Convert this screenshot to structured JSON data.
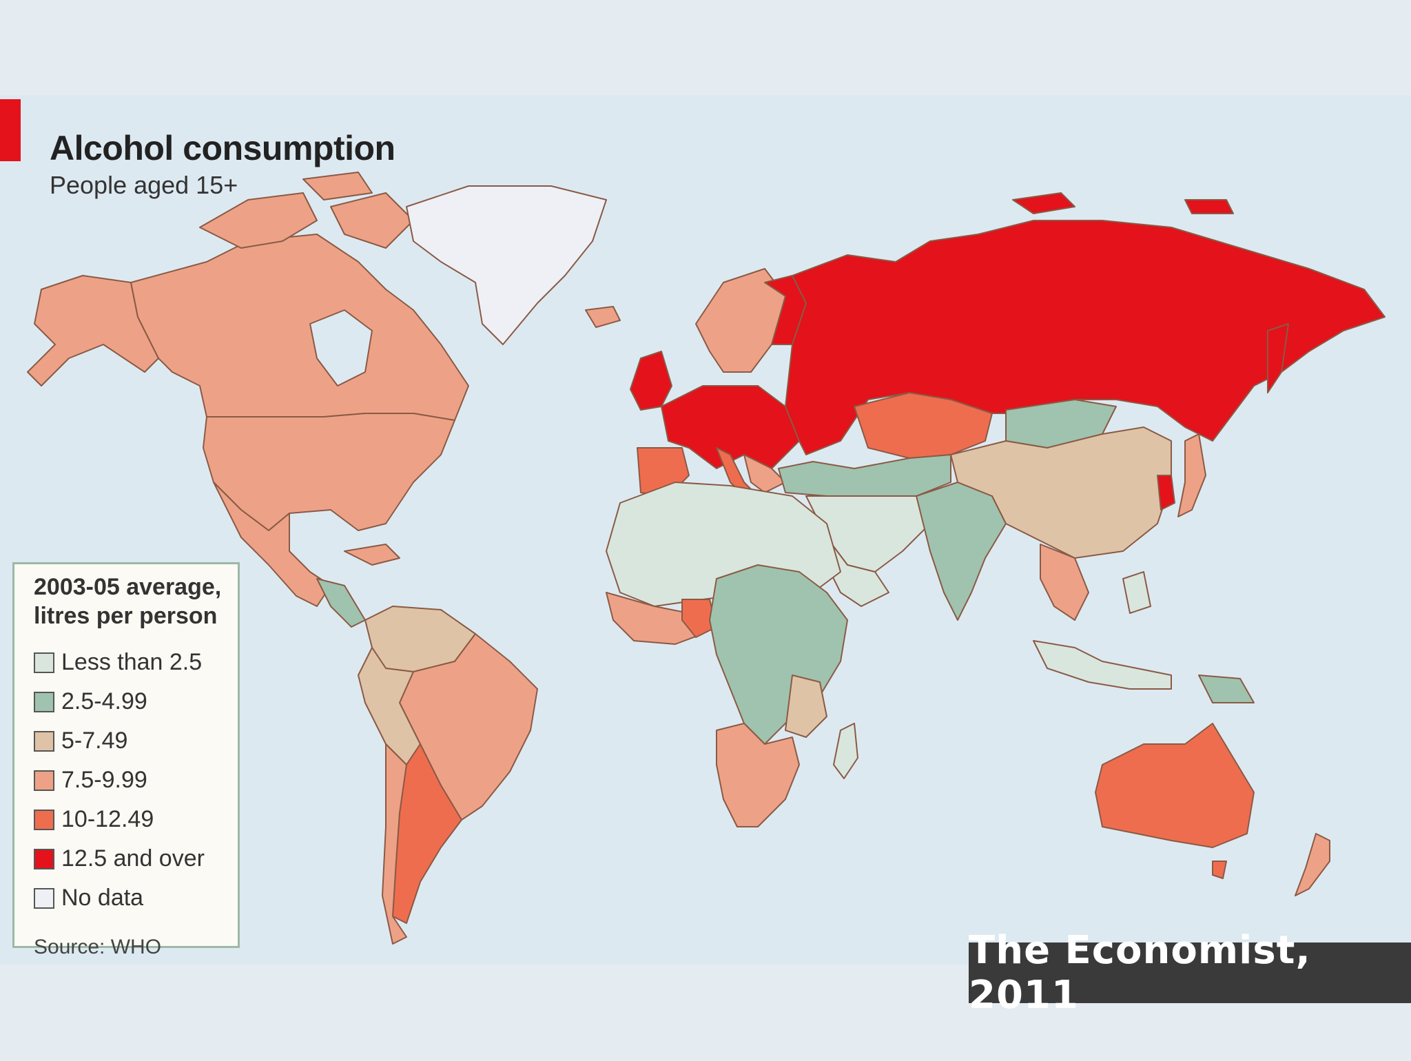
{
  "title": "Alcohol consumption",
  "subtitle": "People aged 15+",
  "legend": {
    "title": "2003-05 average, litres per person",
    "items": [
      {
        "label": "Less than 2.5",
        "color": "#d9e6de"
      },
      {
        "label": "2.5-4.99",
        "color": "#9fc3ae"
      },
      {
        "label": "5-7.49",
        "color": "#dfc3a6"
      },
      {
        "label": "7.5-9.99",
        "color": "#eda287"
      },
      {
        "label": "10-12.49",
        "color": "#ef6d4f"
      },
      {
        "label": "12.5 and over",
        "color": "#e3121b"
      },
      {
        "label": "No data",
        "color": "#eef0f6"
      }
    ],
    "source": "Source: WHO"
  },
  "credit": "The Economist, 2011",
  "colors": {
    "ocean": "#dde9f1",
    "accent": "#e3121b",
    "border": "#8a5a45"
  }
}
